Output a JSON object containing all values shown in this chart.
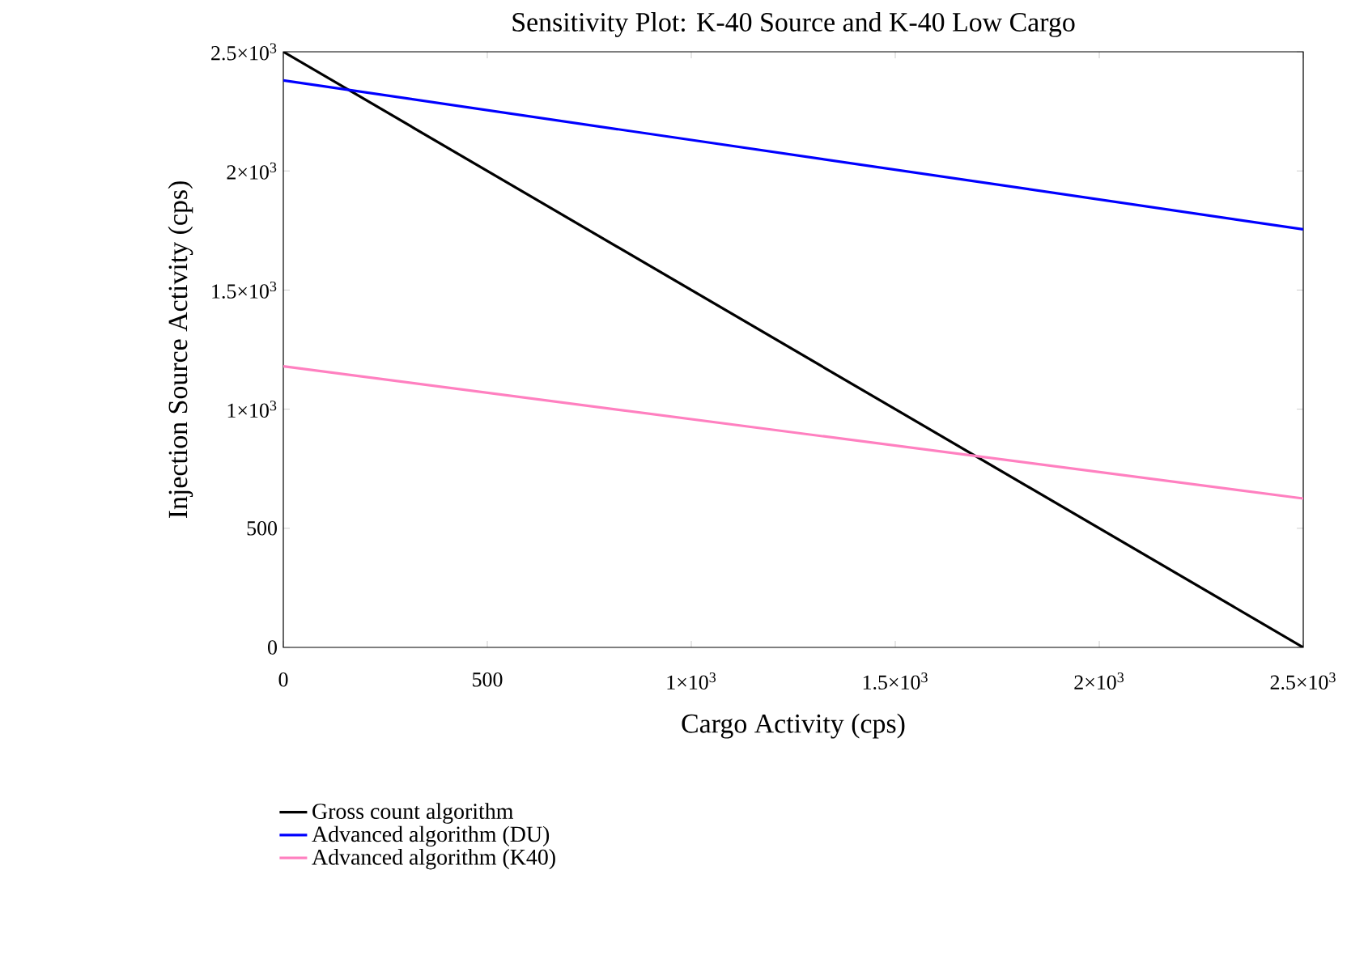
{
  "chart_data": {
    "type": "line",
    "title": "Sensitivity Plot: K-40 Source and K-40 Low Cargo",
    "xlabel": "Cargo Activity (cps)",
    "ylabel": "Injection Source Activity (cps)",
    "x": [
      0,
      2500
    ],
    "series": [
      {
        "name": "Gross count algorithm",
        "color": "#000000",
        "values": [
          2500,
          0
        ]
      },
      {
        "name": "Advanced algorithm (DU)",
        "color": "#0000ff",
        "values": [
          2380,
          1755
        ]
      },
      {
        "name": "Advanced algorithm (K40)",
        "color": "#ff80c0",
        "values": [
          1180,
          625
        ]
      }
    ],
    "xlim": [
      0,
      2500
    ],
    "ylim": [
      0,
      2500
    ],
    "xticks": [
      0,
      500,
      {
        "value": 1000,
        "label": "1×10$^{3}$"
      },
      {
        "value": 1500,
        "label": "1.5×10$^{3}$"
      },
      {
        "value": 2000,
        "label": "2×10$^{3}$"
      },
      {
        "value": 2500,
        "label": "2.5×10$^{3}$"
      }
    ],
    "yticks": [
      0,
      500,
      {
        "value": 1000,
        "label": "1×10$^{3}$"
      },
      {
        "value": 1500,
        "label": "1.5×10$^{3}$"
      },
      {
        "value": 2000,
        "label": "2×10$^{3}$"
      },
      {
        "value": 2500,
        "label": "2.5×10$^{3}$"
      }
    ],
    "grid": false,
    "legend": "bottom",
    "marker": "none",
    "line_style": "solid"
  }
}
